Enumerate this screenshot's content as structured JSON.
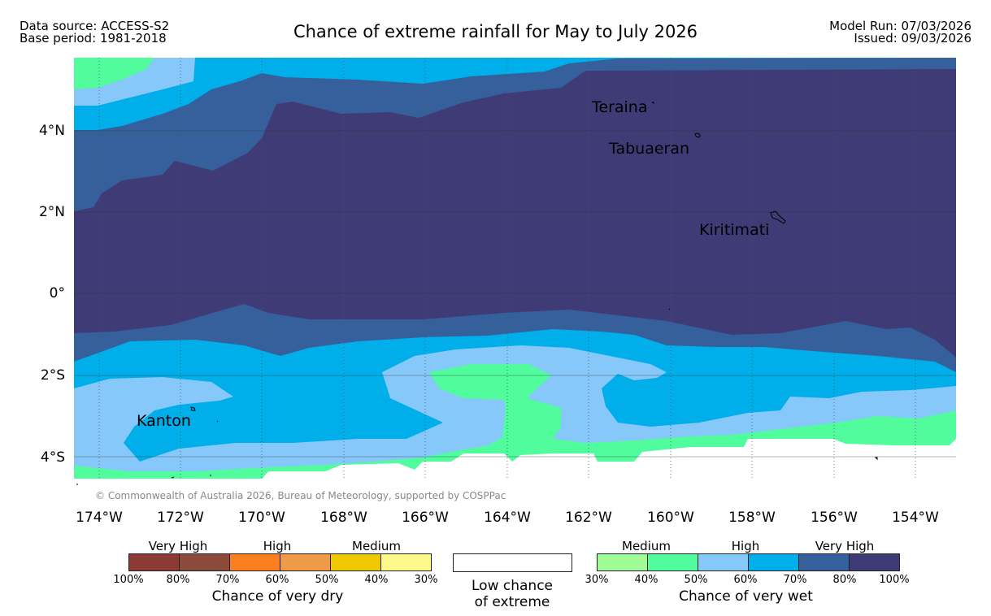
{
  "header": {
    "data_source": "Data source: ACCESS-S2",
    "base_period": "Base period: 1981-2018",
    "title": "Chance of extreme rainfall for May to July 2026",
    "model_run": "Model Run: 07/03/2026",
    "issued": "Issued: 09/03/2026"
  },
  "map": {
    "lat_labels": [
      "4°N",
      "2°N",
      "0°",
      "2°S",
      "4°S"
    ],
    "lon_labels": [
      "174°W",
      "172°W",
      "170°W",
      "168°W",
      "166°W",
      "164°W",
      "162°W",
      "160°W",
      "158°W",
      "156°W",
      "154°W"
    ],
    "places": [
      "Teraina",
      "Tabuaeran",
      "Kiritimati",
      "Kanton"
    ],
    "copyright": "© Commonwealth of Australia 2026, Bureau of Meteorology, supported by COSPPac",
    "colors": {
      "very_wet_80_100": "#3f3b77",
      "very_wet_70_80": "#35609c",
      "wet_60_70": "#00aeea",
      "wet_50_60": "#86c8fa",
      "wet_40_50": "#50fc9c",
      "wet_30_40": "#a0fa96",
      "low": "#ffffff"
    }
  },
  "legend": {
    "dry": {
      "categories": [
        "Very High",
        "High",
        "Medium"
      ],
      "colors": [
        "#8b3a34",
        "#8c4a3a",
        "#fb7e21",
        "#ee9a48",
        "#efc900",
        "#fef789"
      ],
      "ticks": [
        "100%",
        "80%",
        "70%",
        "60%",
        "50%",
        "40%",
        "30%"
      ],
      "label": "Chance of very dry"
    },
    "low": {
      "line1": "Low chance",
      "line2": "of extreme"
    },
    "wet": {
      "categories": [
        "Medium",
        "High",
        "Very High"
      ],
      "colors": [
        "#a0fa96",
        "#50fc9c",
        "#86c8fa",
        "#00aeea",
        "#35609c",
        "#3f3b77"
      ],
      "ticks": [
        "30%",
        "40%",
        "50%",
        "60%",
        "70%",
        "80%",
        "100%"
      ],
      "label": "Chance of very wet"
    }
  }
}
